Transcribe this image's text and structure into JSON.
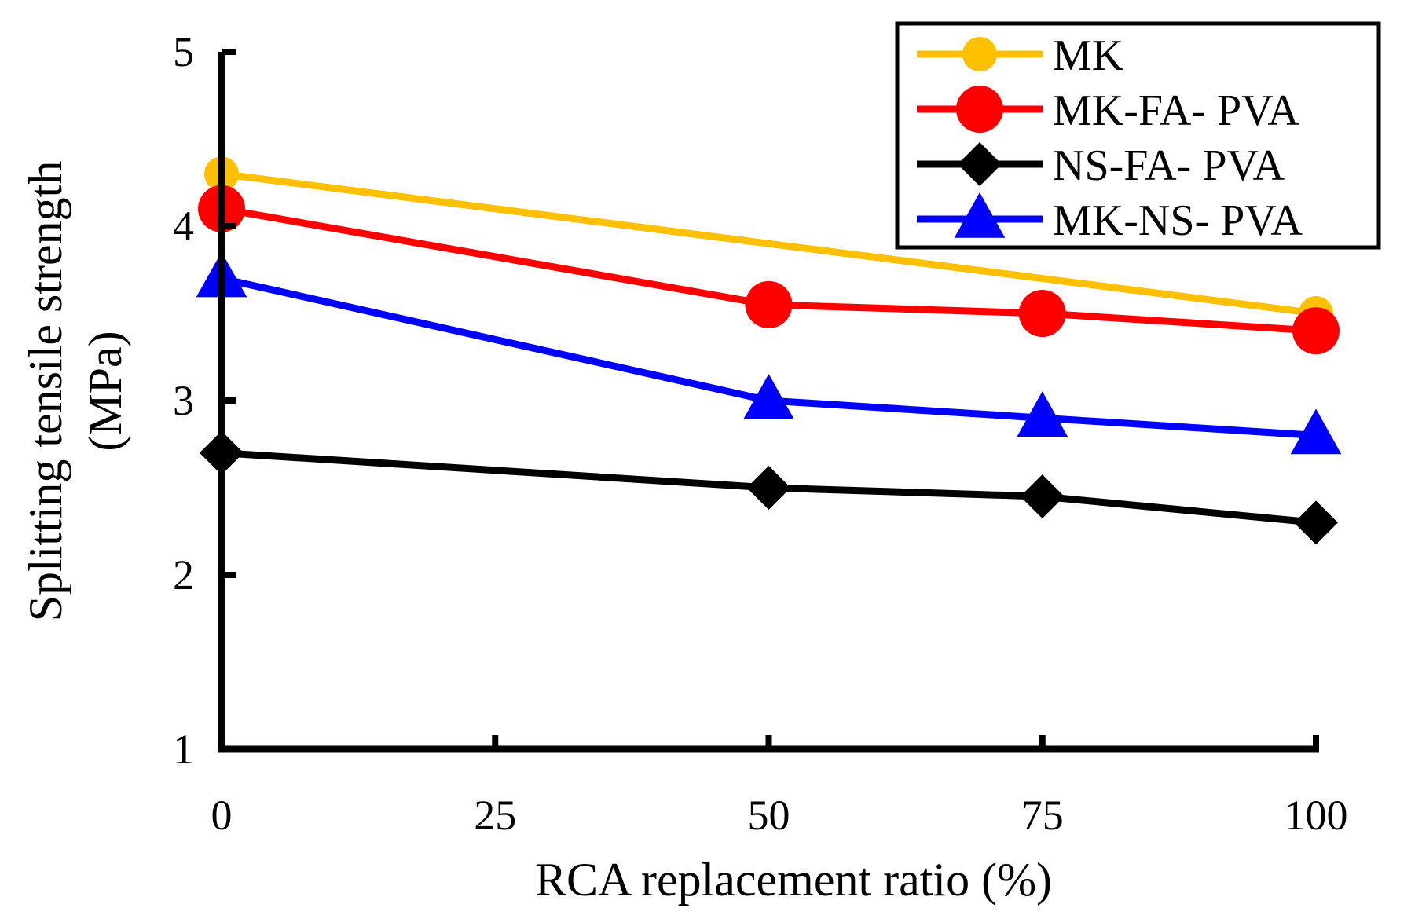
{
  "chart_data": {
    "type": "line",
    "title": "",
    "xlabel": "RCA replacement ratio (%)",
    "ylabel_lines": [
      "Splitting tensile strength",
      "(MPa)"
    ],
    "xlim": [
      0,
      100
    ],
    "ylim": [
      1,
      5
    ],
    "xticks": [
      0,
      25,
      50,
      75,
      100
    ],
    "yticks": [
      1,
      2,
      3,
      4,
      5
    ],
    "grid": false,
    "legend_position": "top-right",
    "series": [
      {
        "name": "MK",
        "color": "#FFC000",
        "marker": "circle-small",
        "points": [
          {
            "x": 0,
            "y": 4.3
          },
          {
            "x": 100,
            "y": 3.5
          }
        ]
      },
      {
        "name": "MK-FA- PVA",
        "color": "#FF0000",
        "marker": "circle",
        "points": [
          {
            "x": 0,
            "y": 4.1
          },
          {
            "x": 50,
            "y": 3.55
          },
          {
            "x": 75,
            "y": 3.5
          },
          {
            "x": 100,
            "y": 3.4
          }
        ]
      },
      {
        "name": "NS-FA- PVA",
        "color": "#000000",
        "marker": "diamond",
        "points": [
          {
            "x": 0,
            "y": 2.7
          },
          {
            "x": 50,
            "y": 2.5
          },
          {
            "x": 75,
            "y": 2.45
          },
          {
            "x": 100,
            "y": 2.3
          }
        ]
      },
      {
        "name": "MK-NS- PVA",
        "color": "#0000FF",
        "marker": "triangle",
        "points": [
          {
            "x": 0,
            "y": 3.7
          },
          {
            "x": 50,
            "y": 3.0
          },
          {
            "x": 75,
            "y": 2.9
          },
          {
            "x": 100,
            "y": 2.8
          }
        ]
      }
    ]
  }
}
